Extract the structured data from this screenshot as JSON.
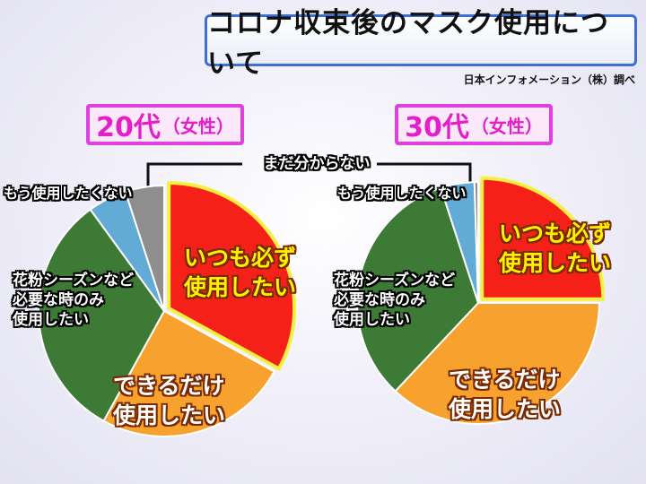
{
  "header": {
    "title": "コロナ収束後のマスク使用について",
    "source": "日本インフォメーション（株）調べ"
  },
  "bracket_label": "まだ分からない",
  "colors": {
    "always": "#f52018",
    "as_much": "#f7a12f",
    "pollen": "#3c7a35",
    "no_more": "#62abd6",
    "unknown": "#8e8e8e",
    "outline": "#f7f040"
  },
  "chart_data": [
    {
      "type": "pie",
      "title_age": "20代",
      "title_sex": "（女性）",
      "slices": [
        {
          "label": "いつも必ず使用したい",
          "line1": "いつも必ず",
          "line2": "使用したい",
          "value": 33,
          "color": "#f52018"
        },
        {
          "label": "できるだけ使用したい",
          "line1": "できるだけ",
          "line2": "使用したい",
          "value": 25,
          "color": "#f7a12f"
        },
        {
          "label": "花粉シーズンなど必要な時のみ使用したい",
          "line1": "花粉シーズンなど",
          "line2": "必要な時のみ",
          "line3": "使用したい",
          "value": 32,
          "color": "#3c7a35"
        },
        {
          "label": "もう使用したくない",
          "value": 5,
          "color": "#62abd6"
        },
        {
          "label": "まだ分からない",
          "value": 5,
          "color": "#8e8e8e"
        }
      ]
    },
    {
      "type": "pie",
      "title_age": "30代",
      "title_sex": "（女性）",
      "slices": [
        {
          "label": "いつも必ず使用したい",
          "line1": "いつも必ず",
          "line2": "使用したい",
          "value": 25,
          "color": "#f52018"
        },
        {
          "label": "できるだけ使用したい",
          "line1": "できるだけ",
          "line2": "使用したい",
          "value": 37,
          "color": "#f7a12f"
        },
        {
          "label": "花粉シーズンなど必要な時のみ使用したい",
          "line1": "花粉シーズンなど",
          "line2": "必要な時のみ",
          "line3": "使用したい",
          "value": 33,
          "color": "#3c7a35"
        },
        {
          "label": "もう使用したくない",
          "value": 4.5,
          "color": "#62abd6"
        },
        {
          "label": "まだ分からない",
          "value": 0.5,
          "color": "#8e8e8e"
        }
      ]
    }
  ]
}
